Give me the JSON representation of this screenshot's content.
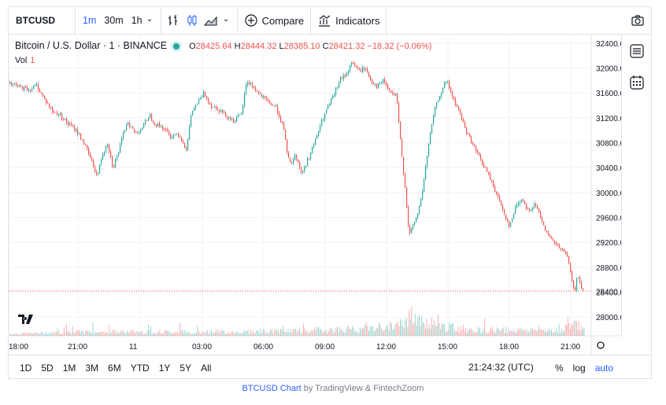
{
  "toolbar": {
    "symbol": "BTCUSD",
    "intervals": [
      "1m",
      "30m",
      "1h"
    ],
    "compare_label": "Compare",
    "indicators_label": "Indicators"
  },
  "legend": {
    "title": "Bitcoin / U.S. Dollar · 1 · BINANCE",
    "open": "28425.64",
    "high": "28444.32",
    "low": "28385.10",
    "close": "28421.32",
    "change": "−18.32 (−0.06%)",
    "o_label": "O",
    "h_label": "H",
    "l_label": "L",
    "c_label": "C",
    "vol_label": "Vol",
    "vol_value": "1"
  },
  "bottom": {
    "ranges": [
      "1D",
      "5D",
      "1M",
      "3M",
      "6M",
      "YTD",
      "1Y",
      "5Y",
      "All"
    ],
    "time": "21:24:32 (UTC)",
    "percent": "%",
    "log": "log",
    "auto": "auto"
  },
  "footer": {
    "link": "BTCUSD Chart",
    "by": " by TradingView & FintechZoom"
  },
  "colors": {
    "up": "#26a69a",
    "down": "#ef5350",
    "accent": "#2962ff",
    "grid": "#f0f3fa"
  },
  "chart_data": {
    "type": "line",
    "y_ticks": [
      "32400.0",
      "32000.0",
      "31600.0",
      "31200.0",
      "30800.0",
      "30400.0",
      "30000.0",
      "29600.0",
      "29200.0",
      "28800.0",
      "28400.0",
      "28000.0"
    ],
    "x_ticks": [
      "18:00",
      "21:00",
      "11",
      "03:00",
      "06:00",
      "09:00",
      "12:00",
      "15:00",
      "18:00",
      "21:00"
    ],
    "ylim": [
      27700,
      32550
    ],
    "last_price": 28421.32,
    "price_path": [
      [
        0,
        31750
      ],
      [
        12,
        31700
      ],
      [
        25,
        31650
      ],
      [
        35,
        31720
      ],
      [
        45,
        31500
      ],
      [
        55,
        31300
      ],
      [
        65,
        31250
      ],
      [
        75,
        31100
      ],
      [
        85,
        31000
      ],
      [
        95,
        30800
      ],
      [
        105,
        30500
      ],
      [
        112,
        30250
      ],
      [
        118,
        30600
      ],
      [
        125,
        30800
      ],
      [
        132,
        30400
      ],
      [
        140,
        30700
      ],
      [
        150,
        31150
      ],
      [
        160,
        30950
      ],
      [
        170,
        31050
      ],
      [
        178,
        31250
      ],
      [
        186,
        31100
      ],
      [
        195,
        31050
      ],
      [
        205,
        30900
      ],
      [
        215,
        30950
      ],
      [
        225,
        30700
      ],
      [
        232,
        31300
      ],
      [
        240,
        31450
      ],
      [
        248,
        31600
      ],
      [
        256,
        31400
      ],
      [
        265,
        31350
      ],
      [
        275,
        31250
      ],
      [
        285,
        31150
      ],
      [
        295,
        31250
      ],
      [
        302,
        31800
      ],
      [
        310,
        31700
      ],
      [
        320,
        31550
      ],
      [
        330,
        31450
      ],
      [
        340,
        31350
      ],
      [
        348,
        31050
      ],
      [
        356,
        30450
      ],
      [
        364,
        30600
      ],
      [
        372,
        30300
      ],
      [
        380,
        30550
      ],
      [
        388,
        30800
      ],
      [
        396,
        31100
      ],
      [
        404,
        31350
      ],
      [
        412,
        31550
      ],
      [
        420,
        31800
      ],
      [
        428,
        31900
      ],
      [
        436,
        32100
      ],
      [
        444,
        31950
      ],
      [
        452,
        32000
      ],
      [
        460,
        31800
      ],
      [
        468,
        31700
      ],
      [
        476,
        31800
      ],
      [
        484,
        31600
      ],
      [
        492,
        31550
      ],
      [
        498,
        30700
      ],
      [
        503,
        30100
      ],
      [
        508,
        29300
      ],
      [
        514,
        29500
      ],
      [
        520,
        29700
      ],
      [
        526,
        30100
      ],
      [
        532,
        30700
      ],
      [
        540,
        31300
      ],
      [
        548,
        31600
      ],
      [
        556,
        31800
      ],
      [
        564,
        31500
      ],
      [
        572,
        31300
      ],
      [
        580,
        31000
      ],
      [
        588,
        30800
      ],
      [
        596,
        30600
      ],
      [
        604,
        30400
      ],
      [
        612,
        30200
      ],
      [
        620,
        29950
      ],
      [
        628,
        29700
      ],
      [
        636,
        29450
      ],
      [
        644,
        29800
      ],
      [
        652,
        29900
      ],
      [
        660,
        29700
      ],
      [
        668,
        29800
      ],
      [
        676,
        29600
      ],
      [
        684,
        29300
      ],
      [
        692,
        29200
      ],
      [
        700,
        29100
      ],
      [
        708,
        29000
      ],
      [
        714,
        28700
      ],
      [
        718,
        28350
      ],
      [
        722,
        28700
      ],
      [
        726,
        28500
      ],
      [
        730,
        28420
      ]
    ],
    "volume_path": [
      [
        0,
        1
      ],
      [
        100,
        2
      ],
      [
        200,
        2
      ],
      [
        300,
        2
      ],
      [
        400,
        3
      ],
      [
        480,
        4
      ],
      [
        500,
        6
      ],
      [
        510,
        10
      ],
      [
        520,
        7
      ],
      [
        530,
        6
      ],
      [
        540,
        5
      ],
      [
        600,
        3
      ],
      [
        700,
        3
      ],
      [
        720,
        6
      ],
      [
        730,
        3
      ]
    ]
  }
}
